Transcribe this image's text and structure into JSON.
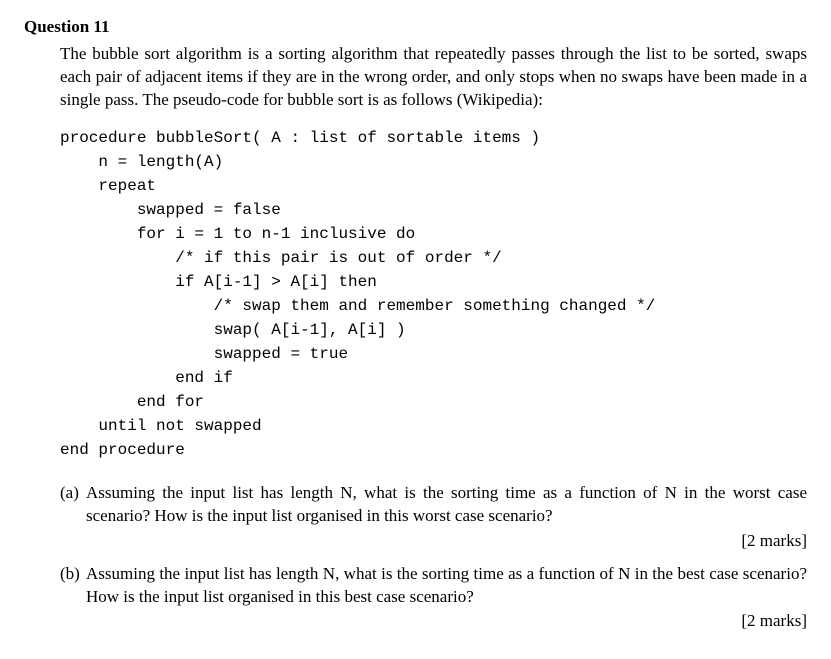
{
  "question": {
    "number": "Question 11",
    "intro": "The bubble sort algorithm is a sorting algorithm that repeatedly passes through the list to be sorted, swaps each pair of adjacent items if they are in the wrong order, and only stops when no swaps have been made in a single pass. The pseudo-code for bubble sort is as follows (Wikipedia):",
    "code": {
      "l1": "procedure bubbleSort( A : list of sortable items )",
      "l2": "    n = length(A)",
      "l3": "    repeat",
      "l4": "        swapped = false",
      "l5": "        for i = 1 to n-1 inclusive do",
      "l6": "            /* if this pair is out of order */",
      "l7": "            if A[i-1] > A[i] then",
      "l8": "                /* swap them and remember something changed */",
      "l9": "                swap( A[i-1], A[i] )",
      "l10": "                swapped = true",
      "l11": "            end if",
      "l12": "        end for",
      "l13": "    until not swapped",
      "l14": "end procedure"
    },
    "parts": {
      "a": {
        "label": "(a)",
        "text": "Assuming the input list has length N, what is the sorting time as a function of N in the worst case scenario? How is the input list organised in this worst case scenario?",
        "marks": "[2 marks]"
      },
      "b": {
        "label": "(b)",
        "text": "Assuming the input list has length N, what is the sorting time as a function of N in the best case scenario? How is the input list organised in this best case scenario?",
        "marks": "[2 marks]"
      }
    }
  }
}
